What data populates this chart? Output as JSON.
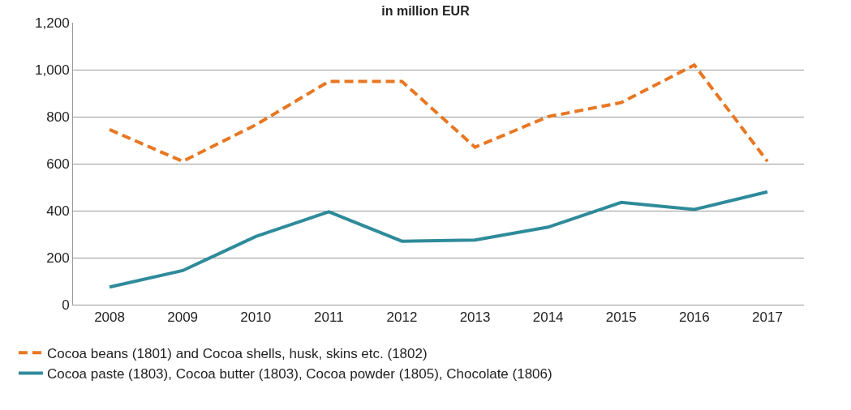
{
  "chart_data": {
    "type": "line",
    "title": "in million EUR",
    "categories": [
      "2008",
      "2009",
      "2010",
      "2011",
      "2012",
      "2013",
      "2014",
      "2015",
      "2016",
      "2017"
    ],
    "series": [
      {
        "name": "Cocoa beans (1801) and Cocoa shells, husk, skins etc. (1802)",
        "color": "#e87722",
        "line_style": "dashed",
        "values": [
          745,
          610,
          765,
          950,
          950,
          670,
          800,
          860,
          1020,
          610
        ]
      },
      {
        "name": "Cocoa paste (1803), Cocoa butter (1803), Cocoa powder (1805), Chocolate (1806)",
        "color": "#2e8b9a",
        "line_style": "solid",
        "values": [
          75,
          145,
          290,
          395,
          270,
          275,
          330,
          435,
          405,
          480
        ]
      }
    ],
    "ylim": [
      0,
      1200
    ],
    "yticks": [
      0,
      {
        "value": 200,
        "label": "200"
      },
      {
        "value": 400,
        "label": "400"
      },
      {
        "value": 600,
        "label": "600"
      },
      {
        "value": 800,
        "label": "800"
      },
      {
        "value": 1000,
        "label": "1,000"
      },
      {
        "value": 1200,
        "label": "1,200"
      }
    ],
    "grid": "y",
    "legend": "bottom",
    "marker": "none"
  }
}
